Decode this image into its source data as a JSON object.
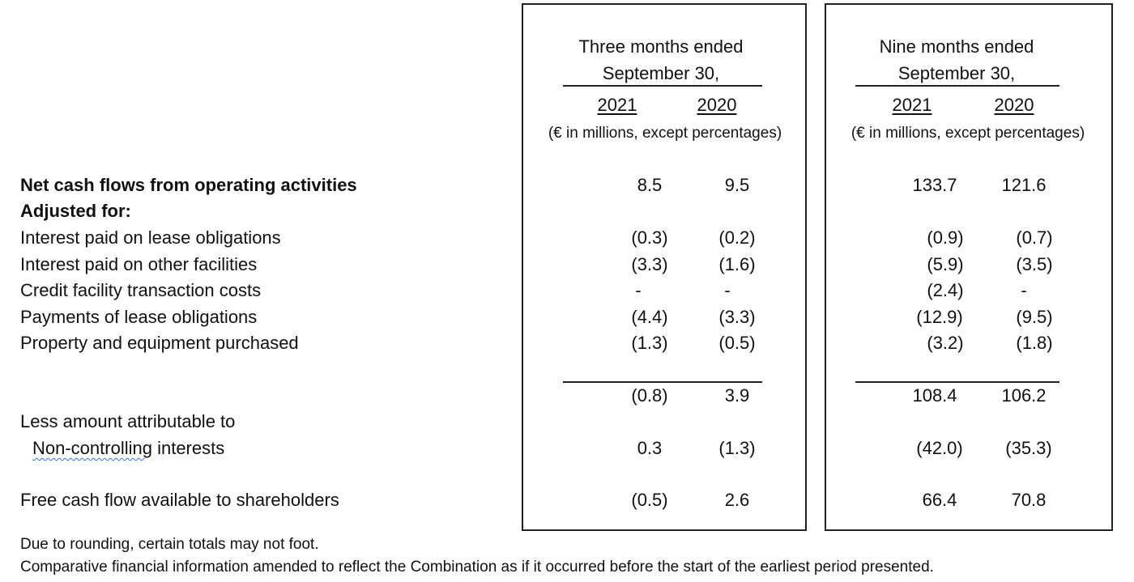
{
  "periods": {
    "three": {
      "title": "Three months ended",
      "date": "September 30,",
      "year_a": "2021",
      "year_b": "2020",
      "units": "(€ in millions, except percentages)"
    },
    "nine": {
      "title": "Nine months ended",
      "date": "September 30,",
      "year_a": "2021",
      "year_b": "2020",
      "units": "(€ in millions, except percentages)"
    }
  },
  "rows": [
    {
      "label": "Net cash flows from operating activities",
      "v": [
        "8.5",
        "9.5",
        "133.7",
        "121.6"
      ]
    },
    {
      "label": "Adjusted for:"
    },
    {
      "label": "Interest paid on lease obligations",
      "v": [
        "(0.3)",
        "(0.2)",
        "(0.9)",
        "(0.7)"
      ]
    },
    {
      "label": "Interest paid on other facilities",
      "v": [
        "(3.3)",
        "(1.6)",
        "(5.9)",
        "(3.5)"
      ]
    },
    {
      "label": "Credit facility transaction costs",
      "v": [
        "-",
        "-",
        "(2.4)",
        "-"
      ]
    },
    {
      "label": "Payments of lease obligations",
      "v": [
        "(4.4)",
        "(3.3)",
        "(12.9)",
        "(9.5)"
      ]
    },
    {
      "label": "Property and equipment purchased",
      "v": [
        "(1.3)",
        "(0.5)",
        "(3.2)",
        "(1.8)"
      ]
    },
    {
      "label": "",
      "v": [
        "(0.8)",
        "3.9",
        "108.4",
        "106.2"
      ]
    },
    {
      "label": "Less amount attributable to"
    },
    {
      "label_a": "Non-controlling",
      "label_b": " interests",
      "v": [
        "0.3",
        "(1.3)",
        "(42.0)",
        "(35.3)"
      ]
    },
    {
      "label": "Free cash flow available to shareholders",
      "v": [
        "(0.5)",
        "2.6",
        "66.4",
        "70.8"
      ]
    }
  ],
  "notes": [
    "Due to rounding, certain totals may not foot.",
    "Comparative financial information amended to reflect the Combination as if it occurred before the start of the earliest period presented."
  ]
}
